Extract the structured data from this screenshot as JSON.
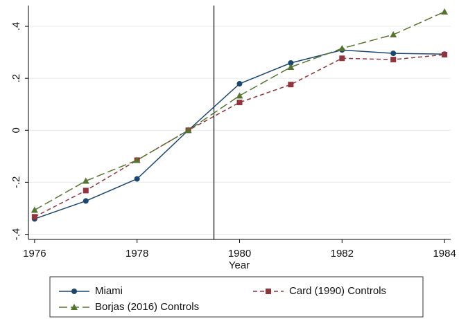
{
  "chart_data": {
    "type": "line",
    "x_label": "Year",
    "x": [
      1976,
      1977,
      1978,
      1979,
      1980,
      1981,
      1982,
      1983,
      1984
    ],
    "xlim": [
      1975.88,
      1984.12
    ],
    "xticks": [
      1976,
      1978,
      1980,
      1982,
      1984
    ],
    "ylim": [
      -0.42,
      0.48
    ],
    "yticks": [
      {
        "value": -0.4,
        "label": "-.4"
      },
      {
        "value": -0.2,
        "label": "-.2"
      },
      0,
      {
        "value": 0.2,
        "label": ".2"
      },
      {
        "value": 0.4,
        "label": ".4"
      }
    ],
    "grid": true,
    "vline": 1979.5,
    "series": [
      {
        "name": "Miami",
        "color": "#1a476f",
        "marker": "circle",
        "line_style": "solid",
        "values": [
          -0.341,
          -0.272,
          -0.187,
          0,
          0.179,
          0.259,
          0.309,
          0.296,
          0.293
        ]
      },
      {
        "name": "Card (1990) Controls",
        "color": "#90353b",
        "marker": "square",
        "line_style": "dashed",
        "values": [
          -0.333,
          -0.232,
          -0.115,
          0,
          0.107,
          0.176,
          0.277,
          0.272,
          0.291
        ]
      },
      {
        "name": "Borjas (2016) Controls",
        "color": "#55752f",
        "marker": "triangle",
        "line_style": "longdash",
        "values": [
          -0.307,
          -0.195,
          -0.115,
          0,
          0.133,
          0.243,
          0.315,
          0.368,
          0.456
        ]
      }
    ]
  }
}
